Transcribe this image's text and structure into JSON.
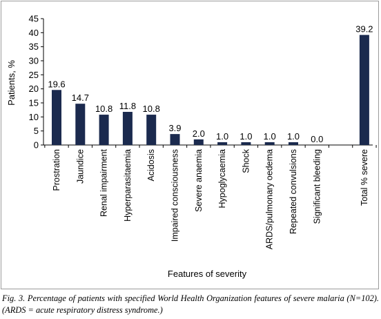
{
  "chart_data": {
    "type": "bar",
    "categories": [
      "Prostration",
      "Jaundice",
      "Renal impairment",
      "Hyperparasitaemia",
      "Acidosis",
      "Impaired consciousness",
      "Severe anaemia",
      "Hypoglycaemia",
      "Shock",
      "ARDS/pulmonary oedema",
      "Repeated convulsions",
      "Significant bleeding",
      "",
      "Total % severe"
    ],
    "values": [
      19.6,
      14.7,
      10.8,
      11.8,
      10.8,
      3.9,
      2.0,
      1.0,
      1.0,
      1.0,
      1.0,
      0.0,
      null,
      39.2
    ],
    "data_labels": [
      "19.6",
      "14.7",
      "10.8",
      "11.8",
      "10.8",
      "3.9",
      "2.0",
      "1.0",
      "1.0",
      "1.0",
      "1.0",
      "0.0",
      "",
      "39.2"
    ],
    "title": "",
    "xlabel": "Features of severity",
    "ylabel": "Patients, %",
    "ylim": [
      0,
      45
    ],
    "yticks": [
      0,
      5,
      10,
      15,
      20,
      25,
      30,
      35,
      40,
      45
    ],
    "grid": false,
    "legend": "none",
    "bar_color": "#1b2a4e"
  },
  "caption": "Fig. 3. Percentage of patients with specified World Health Organization features of severe malaria (N=102). (ARDS = acute respiratory distress syndrome.)"
}
